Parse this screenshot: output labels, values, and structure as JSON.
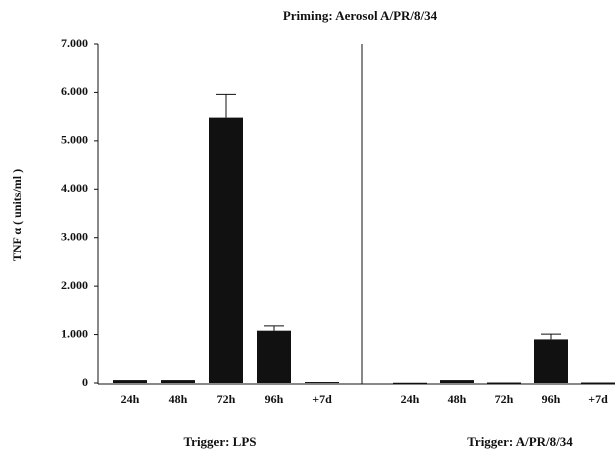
{
  "chart_data": {
    "type": "bar",
    "title": "Priming: Aerosol A/PR/8/34",
    "ylabel": "TNF α ( units/ml )",
    "color": "#111111",
    "ylim": [
      0,
      7000
    ],
    "yticks": [
      0,
      {
        "value": 1000,
        "label": "1.000"
      },
      {
        "value": 2000,
        "label": "2.000"
      },
      {
        "value": 3000,
        "label": "3.000"
      },
      {
        "value": 4000,
        "label": "4.000"
      },
      {
        "value": 5000,
        "label": "5.000"
      },
      {
        "value": 6000,
        "label": "6.000"
      },
      {
        "value": 7000,
        "label": "7.000"
      }
    ],
    "panels": [
      {
        "label": "Trigger: LPS",
        "categories": [
          "24h",
          "48h",
          "72h",
          "96h",
          "+7d"
        ],
        "values": [
          60,
          60,
          5480,
          1080,
          20
        ],
        "errors": [
          null,
          null,
          480,
          100,
          null
        ]
      },
      {
        "label": "Trigger: A/PR/8/34",
        "categories": [
          "24h",
          "48h",
          "72h",
          "96h",
          "+7d"
        ],
        "values": [
          5,
          60,
          10,
          900,
          10
        ],
        "errors": [
          null,
          null,
          null,
          110,
          null
        ]
      }
    ]
  }
}
